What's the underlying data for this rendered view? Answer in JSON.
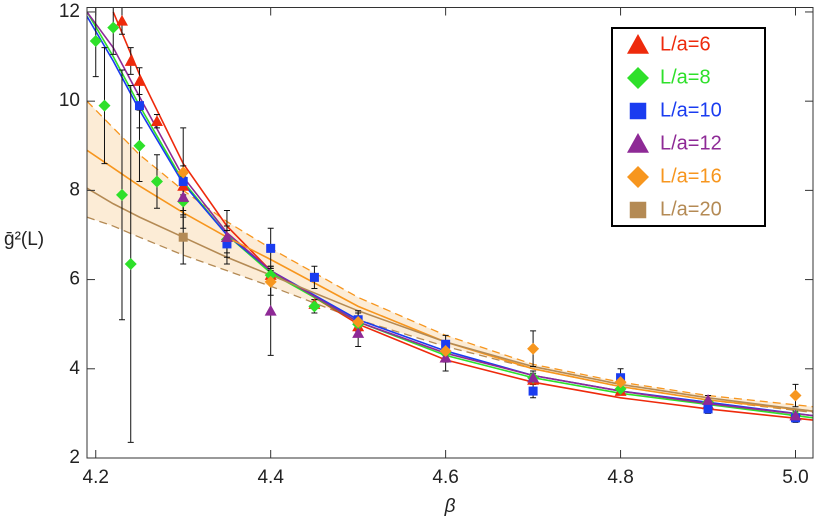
{
  "chart_data": {
    "type": "scatter",
    "xlabel": "β",
    "ylabel": "ḡ²(L)",
    "xlim": [
      4.19,
      5.02
    ],
    "ylim": [
      2,
      12.1
    ],
    "xticks": [
      4.2,
      4.4,
      4.6,
      4.8,
      {
        "value": 5.0,
        "label": "5.0"
      }
    ],
    "yticks": [
      2,
      4,
      6,
      8,
      10,
      12
    ],
    "legend": "top-right",
    "fit_x": [
      4.19,
      4.22,
      4.25,
      4.3,
      4.35,
      4.4,
      4.5,
      4.6,
      4.7,
      4.8,
      4.9,
      5.02
    ],
    "band": {
      "color": "#f6c98a",
      "upper": [
        10.0,
        9.4,
        8.8,
        8.0,
        7.3,
        6.7,
        5.6,
        4.75,
        4.1,
        3.7,
        3.4,
        3.15
      ],
      "lower": [
        7.4,
        7.2,
        6.95,
        6.55,
        6.2,
        5.85,
        5.1,
        4.5,
        4.0,
        3.6,
        3.3,
        3.02
      ]
    },
    "series": [
      {
        "name": "L/a=6",
        "color": "#ee2a0c",
        "marker": "triangle",
        "x": [
          4.23,
          4.24,
          4.25,
          4.27,
          4.3,
          4.35,
          4.4,
          4.45,
          4.5,
          4.6,
          4.7,
          4.8,
          4.9,
          5.0
        ],
        "values": [
          11.8,
          10.9,
          10.45,
          9.55,
          8.1,
          6.95,
          6.1,
          5.45,
          4.95,
          4.25,
          3.75,
          3.5,
          3.2,
          2.95
        ],
        "errors": [
          0.3,
          0.3,
          0.3,
          0.15,
          0.2,
          0.15,
          0.1,
          0.1,
          0.1,
          0.1,
          0.1,
          0.05,
          0.05,
          0.05
        ],
        "fit": [
          null,
          12.0,
          10.6,
          8.6,
          7.2,
          6.2,
          5.0,
          4.2,
          3.7,
          3.35,
          3.1,
          2.85
        ]
      },
      {
        "name": "L/a=8",
        "color": "#2ee02a",
        "marker": "diamond",
        "x": [
          4.2,
          4.21,
          4.22,
          4.23,
          4.24,
          4.25,
          4.27,
          4.3,
          4.35,
          4.4,
          4.45,
          4.5,
          4.6,
          4.7,
          4.8,
          4.9,
          5.0
        ],
        "values": [
          11.35,
          9.9,
          11.65,
          7.9,
          6.35,
          9.0,
          8.2,
          7.75,
          6.9,
          6.1,
          5.4,
          5.0,
          4.35,
          3.8,
          3.55,
          3.25,
          2.95
        ],
        "errors": [
          0.8,
          1.3,
          0.6,
          2.8,
          4.0,
          0.8,
          0.6,
          0.6,
          0.3,
          0.2,
          0.15,
          0.15,
          0.1,
          0.1,
          0.1,
          0.05,
          0.05
        ],
        "fit": [
          12.0,
          11.0,
          9.9,
          8.2,
          7.0,
          6.15,
          5.05,
          4.3,
          3.8,
          3.45,
          3.2,
          2.9
        ]
      },
      {
        "name": "L/a=10",
        "color": "#1a3cf0",
        "marker": "square",
        "x": [
          4.25,
          4.3,
          4.35,
          4.4,
          4.45,
          4.5,
          4.6,
          4.7,
          4.8,
          4.9,
          5.0
        ],
        "values": [
          9.9,
          8.2,
          6.8,
          6.7,
          6.05,
          5.1,
          4.55,
          3.5,
          3.8,
          3.1,
          2.9
        ],
        "errors": [
          0.5,
          0.35,
          0.3,
          0.45,
          0.25,
          0.2,
          0.2,
          0.15,
          0.2,
          0.1,
          0.1
        ],
        "fit": [
          11.9,
          10.9,
          9.8,
          8.15,
          7.0,
          6.2,
          5.1,
          4.4,
          3.85,
          3.5,
          3.25,
          2.95
        ]
      },
      {
        "name": "L/a=12",
        "color": "#8e2a96",
        "marker": "triangle",
        "x": [
          4.3,
          4.35,
          4.4,
          4.5,
          4.6,
          4.7,
          4.9,
          5.0
        ],
        "values": [
          7.85,
          6.95,
          5.3,
          4.8,
          4.25,
          3.8,
          3.3,
          2.95
        ],
        "errors": [
          0.4,
          0.6,
          1.0,
          0.3,
          0.3,
          0.15,
          0.1,
          0.1
        ],
        "fit": [
          12.0,
          11.2,
          10.1,
          8.3,
          7.05,
          6.2,
          5.05,
          4.35,
          3.85,
          3.5,
          3.22,
          2.95
        ]
      },
      {
        "name": "L/a=16",
        "color": "#f7961e",
        "marker": "diamond",
        "x": [
          4.3,
          4.4,
          4.5,
          4.6,
          4.7,
          4.8,
          5.0
        ],
        "values": [
          8.4,
          5.95,
          5.05,
          4.4,
          4.45,
          3.7,
          3.4
        ],
        "errors": [
          1.0,
          0.3,
          0.2,
          0.2,
          0.4,
          0.15,
          0.25
        ],
        "fit": [
          8.9,
          8.5,
          8.1,
          7.5,
          6.95,
          6.45,
          5.4,
          4.6,
          4.0,
          3.6,
          3.3,
          3.05
        ]
      },
      {
        "name": "L/a=20",
        "color": "#b48a54",
        "marker": "square",
        "x": [
          4.3
        ],
        "values": [
          6.95
        ],
        "errors": [
          0.6
        ],
        "fit": [
          8.05,
          7.7,
          7.4,
          6.95,
          6.5,
          6.1,
          5.3,
          4.6,
          4.05,
          3.65,
          3.35,
          3.05
        ]
      }
    ]
  }
}
